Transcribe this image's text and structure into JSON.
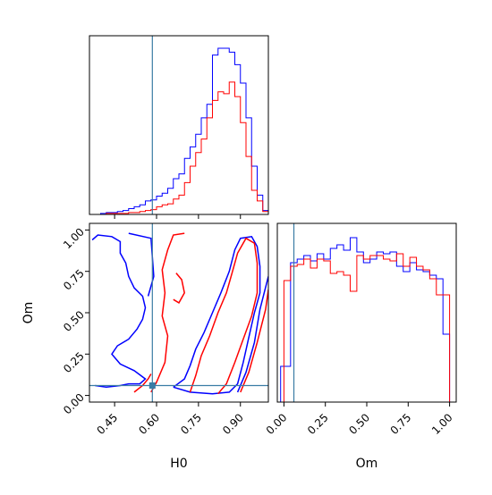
{
  "colors": {
    "series_blue": "#0000ff",
    "series_red": "#ff0000",
    "truth_line": "#3a7ca5"
  },
  "chart_data": [
    {
      "type": "histogram",
      "panel": "H0 marginal",
      "x_range": [
        0.36,
        1.0
      ],
      "bin_edges": [
        0.36,
        0.38,
        0.4,
        0.42,
        0.44,
        0.46,
        0.48,
        0.5,
        0.52,
        0.54,
        0.56,
        0.58,
        0.6,
        0.62,
        0.64,
        0.66,
        0.68,
        0.7,
        0.72,
        0.74,
        0.76,
        0.78,
        0.8,
        0.82,
        0.84,
        0.86,
        0.88,
        0.9,
        0.92,
        0.94,
        0.96,
        0.98,
        1.0
      ],
      "y_max": 185,
      "series": [
        {
          "color_key": "series_blue",
          "values": [
            0,
            0,
            1,
            2,
            2,
            3,
            4,
            6,
            8,
            10,
            14,
            15,
            19,
            22,
            27,
            37,
            42,
            58,
            70,
            83,
            100,
            114,
            165,
            172,
            172,
            168,
            155,
            136,
            100,
            50,
            20,
            4
          ]
        },
        {
          "color_key": "series_red",
          "values": [
            0,
            0,
            0,
            1,
            1,
            1,
            1,
            2,
            2,
            3,
            4,
            5,
            8,
            10,
            11,
            16,
            20,
            33,
            50,
            64,
            78,
            100,
            118,
            127,
            125,
            137,
            122,
            95,
            60,
            25,
            14,
            3
          ]
        }
      ],
      "truth_x": 0.585
    },
    {
      "type": "contour",
      "panel": "H0 vs Om",
      "xlabel": "H0",
      "ylabel": "Om",
      "x_range": [
        0.36,
        1.0
      ],
      "y_range": [
        -0.04,
        1.04
      ],
      "x_ticks": [
        "0.45",
        "0.60",
        "0.75",
        "0.90"
      ],
      "x_tick_values": [
        0.45,
        0.6,
        0.75,
        0.9
      ],
      "y_ticks": [
        "0.00",
        "0.25",
        "0.50",
        "0.75",
        "1.00"
      ],
      "y_tick_values": [
        0.0,
        0.25,
        0.5,
        0.75,
        1.0
      ],
      "truth": [
        0.585,
        0.06
      ],
      "contours": [
        {
          "color_key": "series_blue",
          "points": [
            [
              0.37,
              0.94
            ],
            [
              0.39,
              0.97
            ],
            [
              0.44,
              0.96
            ],
            [
              0.47,
              0.93
            ],
            [
              0.47,
              0.86
            ],
            [
              0.49,
              0.8
            ],
            [
              0.5,
              0.72
            ],
            [
              0.52,
              0.65
            ],
            [
              0.55,
              0.6
            ],
            [
              0.56,
              0.53
            ],
            [
              0.55,
              0.46
            ],
            [
              0.53,
              0.4
            ],
            [
              0.5,
              0.34
            ],
            [
              0.46,
              0.3
            ],
            [
              0.44,
              0.25
            ],
            [
              0.47,
              0.19
            ],
            [
              0.52,
              0.15
            ],
            [
              0.56,
              0.1
            ],
            [
              0.54,
              0.07
            ],
            [
              0.5,
              0.07
            ],
            [
              0.47,
              0.06
            ],
            [
              0.42,
              0.05
            ],
            [
              0.38,
              0.06
            ]
          ]
        },
        {
          "color_key": "series_blue",
          "points": [
            [
              0.5,
              0.98
            ],
            [
              0.58,
              0.95
            ],
            [
              0.59,
              0.72
            ],
            [
              0.57,
              0.6
            ]
          ]
        },
        {
          "color_key": "series_blue",
          "points": [
            [
              0.66,
              0.05
            ],
            [
              0.7,
              0.1
            ],
            [
              0.72,
              0.18
            ],
            [
              0.74,
              0.28
            ],
            [
              0.77,
              0.38
            ],
            [
              0.8,
              0.5
            ],
            [
              0.83,
              0.62
            ],
            [
              0.86,
              0.75
            ],
            [
              0.88,
              0.88
            ],
            [
              0.9,
              0.95
            ],
            [
              0.94,
              0.96
            ],
            [
              0.96,
              0.9
            ],
            [
              0.97,
              0.78
            ],
            [
              0.97,
              0.62
            ],
            [
              0.95,
              0.5
            ],
            [
              0.93,
              0.35
            ],
            [
              0.91,
              0.2
            ],
            [
              0.89,
              0.07
            ],
            [
              0.86,
              0.02
            ],
            [
              0.8,
              0.01
            ],
            [
              0.72,
              0.02
            ],
            [
              0.66,
              0.05
            ]
          ]
        },
        {
          "color_key": "series_blue",
          "points": [
            [
              0.89,
              0.02
            ],
            [
              0.92,
              0.14
            ],
            [
              0.95,
              0.32
            ],
            [
              0.97,
              0.52
            ],
            [
              1.0,
              0.72
            ]
          ]
        },
        {
          "color_key": "series_red",
          "points": [
            [
              0.72,
              0.02
            ],
            [
              0.74,
              0.12
            ],
            [
              0.76,
              0.24
            ],
            [
              0.79,
              0.36
            ],
            [
              0.82,
              0.5
            ],
            [
              0.85,
              0.62
            ],
            [
              0.87,
              0.74
            ],
            [
              0.89,
              0.86
            ],
            [
              0.92,
              0.95
            ],
            [
              0.95,
              0.92
            ],
            [
              0.96,
              0.8
            ],
            [
              0.96,
              0.62
            ],
            [
              0.94,
              0.48
            ],
            [
              0.91,
              0.34
            ],
            [
              0.88,
              0.2
            ],
            [
              0.85,
              0.07
            ],
            [
              0.82,
              0.01
            ]
          ]
        },
        {
          "color_key": "series_red",
          "points": [
            [
              0.9,
              0.02
            ],
            [
              0.93,
              0.14
            ],
            [
              0.96,
              0.32
            ],
            [
              0.99,
              0.52
            ],
            [
              1.0,
              0.64
            ]
          ]
        },
        {
          "color_key": "series_red",
          "points": [
            [
              0.58,
              0.02
            ],
            [
              0.6,
              0.08
            ],
            [
              0.63,
              0.2
            ],
            [
              0.64,
              0.36
            ],
            [
              0.62,
              0.48
            ],
            [
              0.63,
              0.62
            ],
            [
              0.62,
              0.76
            ],
            [
              0.64,
              0.88
            ],
            [
              0.66,
              0.97
            ],
            [
              0.7,
              0.98
            ]
          ]
        },
        {
          "color_key": "series_red",
          "points": [
            [
              0.52,
              0.02
            ],
            [
              0.55,
              0.06
            ],
            [
              0.57,
              0.1
            ],
            [
              0.58,
              0.13
            ]
          ]
        },
        {
          "color_key": "series_red",
          "points": [
            [
              0.67,
              0.74
            ],
            [
              0.69,
              0.7
            ],
            [
              0.7,
              0.62
            ],
            [
              0.68,
              0.56
            ],
            [
              0.66,
              0.58
            ]
          ]
        }
      ]
    },
    {
      "type": "histogram",
      "panel": "Om marginal",
      "xlabel": "Om",
      "x_range": [
        -0.04,
        1.04
      ],
      "x_ticks": [
        "0.00",
        "0.25",
        "0.50",
        "0.75",
        "1.00"
      ],
      "x_tick_values": [
        0.0,
        0.25,
        0.5,
        0.75,
        1.0
      ],
      "bin_edges": [
        -0.02,
        0.0,
        0.04,
        0.08,
        0.12,
        0.16,
        0.2,
        0.24,
        0.28,
        0.32,
        0.36,
        0.4,
        0.44,
        0.48,
        0.52,
        0.56,
        0.6,
        0.64,
        0.68,
        0.72,
        0.76,
        0.8,
        0.84,
        0.88,
        0.92,
        0.96,
        1.0
      ],
      "y_max": 100,
      "series": [
        {
          "color_key": "series_blue",
          "values": [
            20,
            20,
            78,
            80,
            82,
            79,
            83,
            80,
            86,
            88,
            85,
            92,
            84,
            78,
            80,
            84,
            83,
            84,
            76,
            73,
            78,
            74,
            73,
            71,
            69,
            38
          ]
        },
        {
          "color_key": "series_red",
          "values": [
            0,
            68,
            76,
            77,
            80,
            75,
            80,
            79,
            72,
            73,
            71,
            62,
            82,
            80,
            82,
            82,
            80,
            79,
            83,
            76,
            81,
            76,
            74,
            69,
            60,
            60
          ]
        }
      ],
      "truth_x": 0.06
    }
  ]
}
